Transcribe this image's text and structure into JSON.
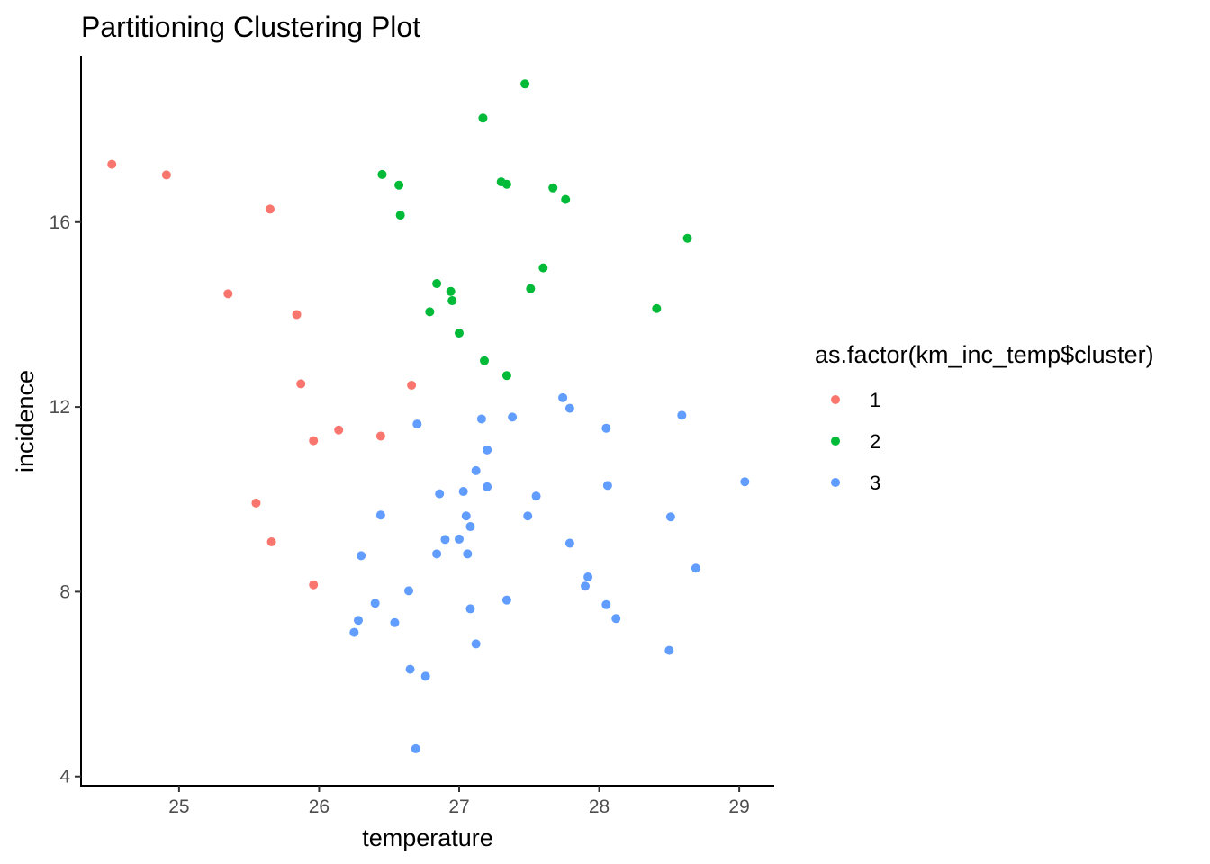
{
  "chart_data": {
    "type": "scatter",
    "title": "Partitioning Clustering Plot",
    "xlabel": "temperature",
    "ylabel": "incidence",
    "xlim": [
      24.3,
      29.25
    ],
    "ylim": [
      3.8,
      19.6
    ],
    "x_ticks": [
      25,
      26,
      27,
      28,
      29
    ],
    "x_tick_labels": [
      "25",
      "26",
      "27",
      "28",
      "29"
    ],
    "y_ticks": [
      4,
      8,
      12,
      16
    ],
    "y_tick_labels": [
      "4",
      "8",
      "12",
      "16"
    ],
    "grid": false,
    "legend": {
      "title": "as.factor(km_inc_temp$cluster)",
      "placement": "right"
    },
    "series": [
      {
        "name": "1",
        "color": "#F8766D",
        "points": [
          [
            24.52,
            17.25
          ],
          [
            24.91,
            17.02
          ],
          [
            25.35,
            14.45
          ],
          [
            25.55,
            9.92
          ],
          [
            25.65,
            16.28
          ],
          [
            25.66,
            9.08
          ],
          [
            25.84,
            14.0
          ],
          [
            25.87,
            12.5
          ],
          [
            25.96,
            11.27
          ],
          [
            25.96,
            8.15
          ],
          [
            26.14,
            11.5
          ],
          [
            26.44,
            11.37
          ],
          [
            26.66,
            12.47
          ]
        ]
      },
      {
        "name": "2",
        "color": "#00BA38",
        "points": [
          [
            26.45,
            17.03
          ],
          [
            26.57,
            16.8
          ],
          [
            26.58,
            16.15
          ],
          [
            26.79,
            14.06
          ],
          [
            26.84,
            14.67
          ],
          [
            26.94,
            14.5
          ],
          [
            26.95,
            14.3
          ],
          [
            27.0,
            13.6
          ],
          [
            27.17,
            18.25
          ],
          [
            27.18,
            13.0
          ],
          [
            27.3,
            16.87
          ],
          [
            27.34,
            16.82
          ],
          [
            27.34,
            12.68
          ],
          [
            27.47,
            18.99
          ],
          [
            27.51,
            14.56
          ],
          [
            27.6,
            15.01
          ],
          [
            27.67,
            16.74
          ],
          [
            27.76,
            16.49
          ],
          [
            28.41,
            14.13
          ],
          [
            28.63,
            15.65
          ]
        ]
      },
      {
        "name": "3",
        "color": "#619CFF",
        "points": [
          [
            26.25,
            7.12
          ],
          [
            26.28,
            7.38
          ],
          [
            26.3,
            8.78
          ],
          [
            26.4,
            7.75
          ],
          [
            26.44,
            9.66
          ],
          [
            26.54,
            7.33
          ],
          [
            26.64,
            8.02
          ],
          [
            26.65,
            6.32
          ],
          [
            26.69,
            4.6
          ],
          [
            26.7,
            11.63
          ],
          [
            26.76,
            6.17
          ],
          [
            26.84,
            8.82
          ],
          [
            26.86,
            10.12
          ],
          [
            26.9,
            9.13
          ],
          [
            27.0,
            9.14
          ],
          [
            27.03,
            10.17
          ],
          [
            27.05,
            9.64
          ],
          [
            27.06,
            8.82
          ],
          [
            27.08,
            9.41
          ],
          [
            27.08,
            7.63
          ],
          [
            27.12,
            10.62
          ],
          [
            27.12,
            6.87
          ],
          [
            27.16,
            11.74
          ],
          [
            27.2,
            11.07
          ],
          [
            27.2,
            10.27
          ],
          [
            27.34,
            7.82
          ],
          [
            27.38,
            11.78
          ],
          [
            27.49,
            9.64
          ],
          [
            27.55,
            10.07
          ],
          [
            27.74,
            12.2
          ],
          [
            27.79,
            11.97
          ],
          [
            27.79,
            9.05
          ],
          [
            27.9,
            8.12
          ],
          [
            27.92,
            8.32
          ],
          [
            28.05,
            11.54
          ],
          [
            28.05,
            7.72
          ],
          [
            28.06,
            10.3
          ],
          [
            28.12,
            7.42
          ],
          [
            28.5,
            6.73
          ],
          [
            28.51,
            9.62
          ],
          [
            28.59,
            11.82
          ],
          [
            28.69,
            8.51
          ],
          [
            29.04,
            10.38
          ]
        ]
      }
    ]
  }
}
